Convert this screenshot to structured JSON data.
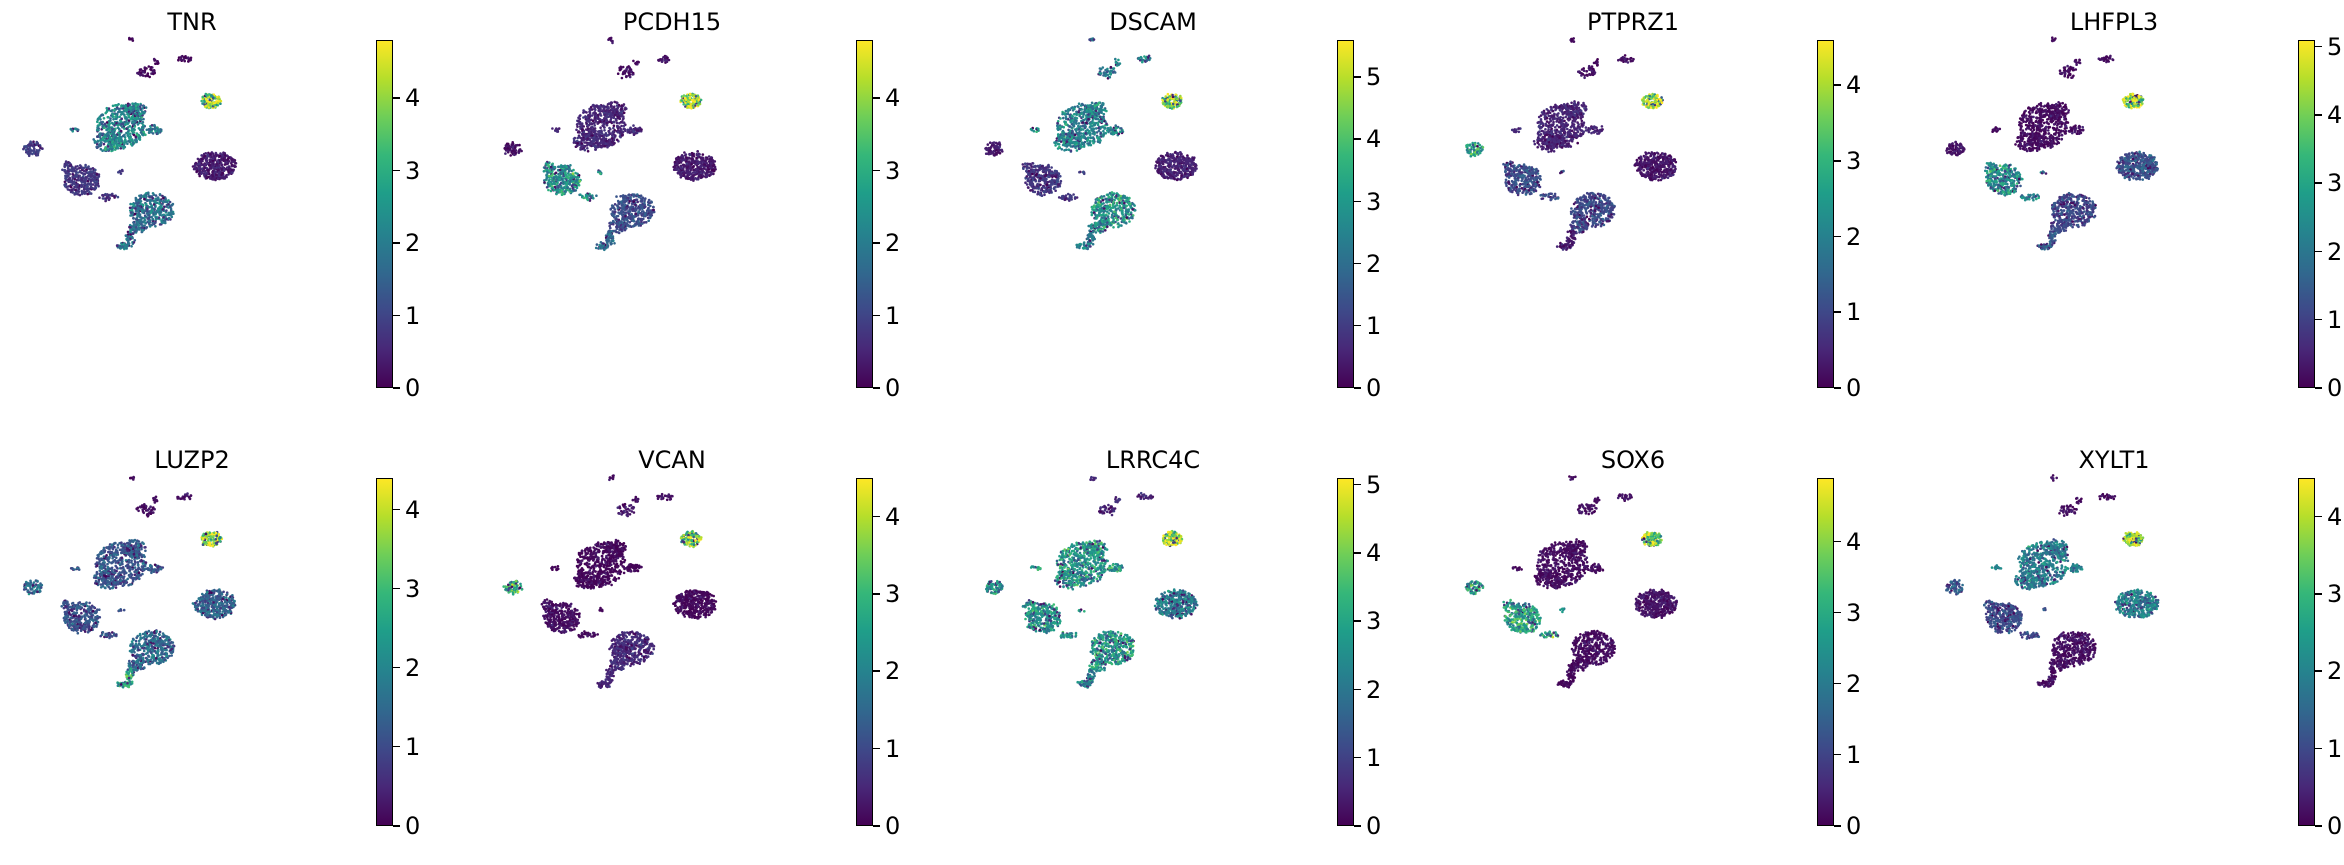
{
  "chart_data": [
    {
      "type": "scatter",
      "title": "TNR",
      "colorbar": {
        "ticks": [
          0,
          1,
          2,
          3,
          4
        ],
        "vmax": 4.8,
        "colormap": "viridis"
      },
      "cluster_expression": {
        "top_small": 0.1,
        "upper_cluster": 2.3,
        "right_bright": 4.2,
        "right_big": 0.4,
        "left_small": 0.9,
        "left_mid": 0.8,
        "bottom_big": 1.9,
        "bottom_tail": 2.0
      }
    },
    {
      "type": "scatter",
      "title": "PCDH15",
      "colorbar": {
        "ticks": [
          0,
          1,
          2,
          3,
          4
        ],
        "vmax": 4.8,
        "colormap": "viridis"
      },
      "cluster_expression": {
        "top_small": 0.2,
        "upper_cluster": 0.6,
        "right_bright": 4.4,
        "right_big": 0.4,
        "left_small": 0.2,
        "left_mid": 2.6,
        "bottom_big": 1.2,
        "bottom_tail": 1.8
      }
    },
    {
      "type": "scatter",
      "title": "DSCAM",
      "colorbar": {
        "ticks": [
          0,
          1,
          2,
          3,
          4,
          5
        ],
        "vmax": 5.6,
        "colormap": "viridis"
      },
      "cluster_expression": {
        "top_small": 2.4,
        "upper_cluster": 2.6,
        "right_bright": 4.9,
        "right_big": 0.6,
        "left_small": 0.5,
        "left_mid": 1.0,
        "bottom_big": 3.0,
        "bottom_tail": 2.4
      }
    },
    {
      "type": "scatter",
      "title": "PTPRZ1",
      "colorbar": {
        "ticks": [
          0,
          1,
          2,
          3,
          4
        ],
        "vmax": 4.6,
        "colormap": "viridis"
      },
      "cluster_expression": {
        "top_small": 0.2,
        "upper_cluster": 0.5,
        "right_bright": 4.2,
        "right_big": 0.3,
        "left_small": 2.8,
        "left_mid": 1.2,
        "bottom_big": 1.1,
        "bottom_tail": 0.4
      }
    },
    {
      "type": "scatter",
      "title": "LHFPL3",
      "colorbar": {
        "ticks": [
          0,
          1,
          2,
          3,
          4,
          5
        ],
        "vmax": 5.1,
        "colormap": "viridis"
      },
      "cluster_expression": {
        "top_small": 0.2,
        "upper_cluster": 0.2,
        "right_bright": 4.6,
        "right_big": 1.4,
        "left_small": 0.3,
        "left_mid": 2.6,
        "bottom_big": 1.2,
        "bottom_tail": 1.6
      }
    },
    {
      "type": "scatter",
      "title": "LUZP2",
      "colorbar": {
        "ticks": [
          0,
          1,
          2,
          3,
          4
        ],
        "vmax": 4.4,
        "colormap": "viridis"
      },
      "cluster_expression": {
        "top_small": 0.2,
        "upper_cluster": 1.3,
        "right_bright": 3.8,
        "right_big": 1.5,
        "left_small": 1.6,
        "left_mid": 1.2,
        "bottom_big": 1.6,
        "bottom_tail": 2.6
      }
    },
    {
      "type": "scatter",
      "title": "VCAN",
      "colorbar": {
        "ticks": [
          0,
          1,
          2,
          3,
          4
        ],
        "vmax": 4.5,
        "colormap": "viridis"
      },
      "cluster_expression": {
        "top_small": 0.3,
        "upper_cluster": 0.1,
        "right_bright": 3.8,
        "right_big": 0.1,
        "left_small": 3.0,
        "left_mid": 0.2,
        "bottom_big": 0.6,
        "bottom_tail": 0.5
      }
    },
    {
      "type": "scatter",
      "title": "LRRC4C",
      "colorbar": {
        "ticks": [
          0,
          1,
          2,
          3,
          4,
          5
        ],
        "vmax": 5.1,
        "colormap": "viridis"
      },
      "cluster_expression": {
        "top_small": 0.6,
        "upper_cluster": 2.8,
        "right_bright": 4.6,
        "right_big": 2.3,
        "left_small": 2.6,
        "left_mid": 2.8,
        "bottom_big": 2.9,
        "bottom_tail": 2.4
      }
    },
    {
      "type": "scatter",
      "title": "SOX6",
      "colorbar": {
        "ticks": [
          0,
          1,
          2,
          3,
          4
        ],
        "vmax": 4.9,
        "colormap": "viridis"
      },
      "cluster_expression": {
        "top_small": 0.2,
        "upper_cluster": 0.2,
        "right_bright": 4.1,
        "right_big": 0.3,
        "left_small": 2.8,
        "left_mid": 3.0,
        "bottom_big": 0.2,
        "bottom_tail": 0.1
      }
    },
    {
      "type": "scatter",
      "title": "XYLT1",
      "colorbar": {
        "ticks": [
          0,
          1,
          2,
          3,
          4
        ],
        "vmax": 4.5,
        "colormap": "viridis"
      },
      "cluster_expression": {
        "top_small": 0.2,
        "upper_cluster": 2.0,
        "right_bright": 3.9,
        "right_big": 2.0,
        "left_small": 1.4,
        "left_mid": 1.1,
        "bottom_big": 0.2,
        "bottom_tail": 0.2
      }
    }
  ]
}
